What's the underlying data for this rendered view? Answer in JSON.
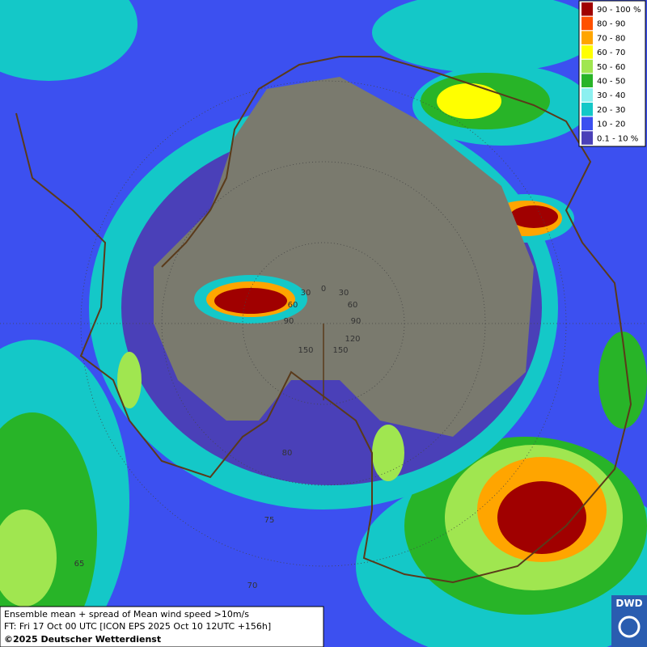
{
  "legend": {
    "items": [
      {
        "label": "90 - 100 %",
        "color": "#a00000"
      },
      {
        "label": "80 - 90",
        "color": "#ff5000"
      },
      {
        "label": "70 - 80",
        "color": "#ffa500"
      },
      {
        "label": "60 - 70",
        "color": "#ffff00"
      },
      {
        "label": "50 - 60",
        "color": "#a0e650"
      },
      {
        "label": "40 - 50",
        "color": "#28b428"
      },
      {
        "label": "30 - 40",
        "color": "#8cf0f0"
      },
      {
        "label": "20 - 30",
        "color": "#14c8c8"
      },
      {
        "label": "10 - 20",
        "color": "#3c50f0"
      },
      {
        "label": "0.1 - 10 %",
        "color": "#4a40b8"
      }
    ]
  },
  "grid_labels": [
    "0",
    "30",
    "60",
    "90",
    "120",
    "150",
    "30",
    "60",
    "90",
    "150",
    "80",
    "75",
    "70",
    "65"
  ],
  "caption": {
    "line1": "Ensemble mean + spread of Mean wind speed >10m/s",
    "line2": "FT: Fri 17 Oct 00 UTC [ICON EPS 2025 Oct 10 12UTC +156h]",
    "copyright": "©2025 Deutscher Wetterdienst"
  },
  "logo": "DWD"
}
